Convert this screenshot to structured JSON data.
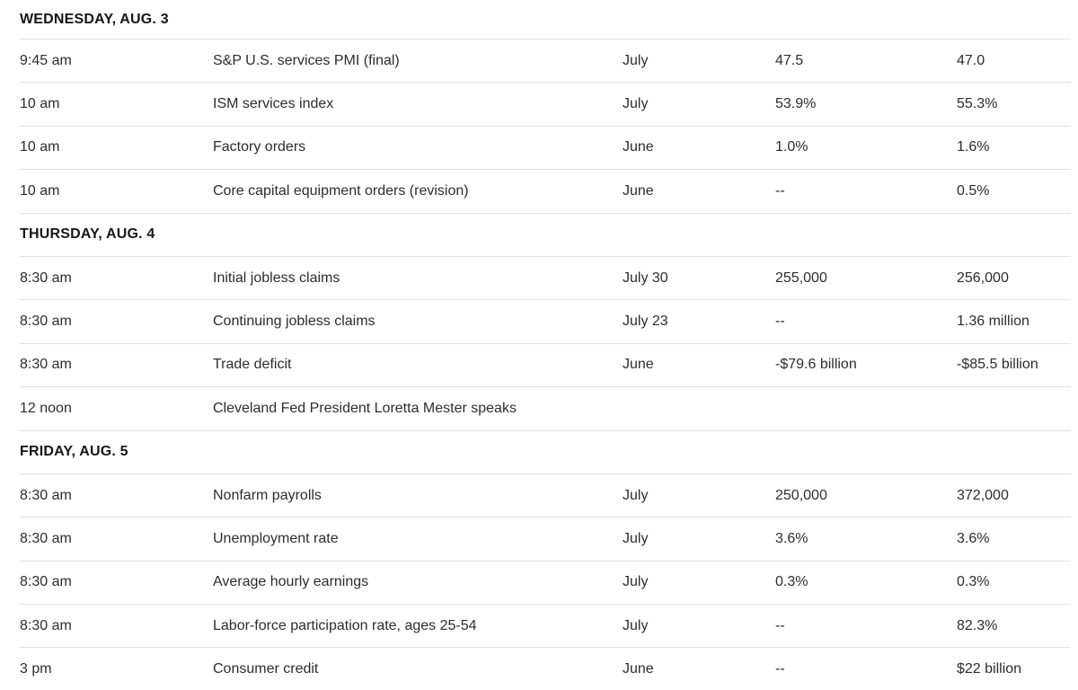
{
  "calendar": {
    "colors": {
      "background": "#ffffff",
      "day_header_text": "#161616",
      "cell_text": "#2d2d2d",
      "divider": "#e1e1e1"
    },
    "sections": [
      {
        "day": "WEDNESDAY, AUG. 3",
        "rows": [
          {
            "time": "9:45 am",
            "report": "S&P U.S. services PMI (final)",
            "period": "July",
            "forecast": "47.5",
            "previous": "47.0"
          },
          {
            "time": "10 am",
            "report": "ISM services index",
            "period": "July",
            "forecast": "53.9%",
            "previous": "55.3%"
          },
          {
            "time": "10 am",
            "report": "Factory orders",
            "period": "June",
            "forecast": "1.0%",
            "previous": "1.6%"
          },
          {
            "time": "10 am",
            "report": "Core capital equipment orders (revision)",
            "period": "June",
            "forecast": "--",
            "previous": "0.5%"
          }
        ]
      },
      {
        "day": "THURSDAY, AUG. 4",
        "rows": [
          {
            "time": "8:30 am",
            "report": "Initial jobless claims",
            "period": "July 30",
            "forecast": "255,000",
            "previous": "256,000"
          },
          {
            "time": "8:30 am",
            "report": "Continuing jobless claims",
            "period": "July 23",
            "forecast": "--",
            "previous": "1.36 million"
          },
          {
            "time": "8:30 am",
            "report": "Trade deficit",
            "period": "June",
            "forecast": "-$79.6 billion",
            "previous": "-$85.5 billion"
          },
          {
            "time": "12 noon",
            "report": "Cleveland Fed President Loretta Mester speaks",
            "period": "",
            "forecast": "",
            "previous": ""
          }
        ]
      },
      {
        "day": "FRIDAY, AUG. 5",
        "rows": [
          {
            "time": "8:30 am",
            "report": "Nonfarm payrolls",
            "period": "July",
            "forecast": "250,000",
            "previous": "372,000"
          },
          {
            "time": "8:30 am",
            "report": "Unemployment rate",
            "period": "July",
            "forecast": "3.6%",
            "previous": "3.6%"
          },
          {
            "time": "8:30 am",
            "report": "Average hourly earnings",
            "period": "July",
            "forecast": "0.3%",
            "previous": "0.3%"
          },
          {
            "time": "8:30 am",
            "report": "Labor-force participation rate, ages 25-54",
            "period": "July",
            "forecast": "--",
            "previous": "82.3%"
          },
          {
            "time": "3 pm",
            "report": "Consumer credit",
            "period": "June",
            "forecast": "--",
            "previous": "$22 billion"
          }
        ]
      }
    ]
  }
}
